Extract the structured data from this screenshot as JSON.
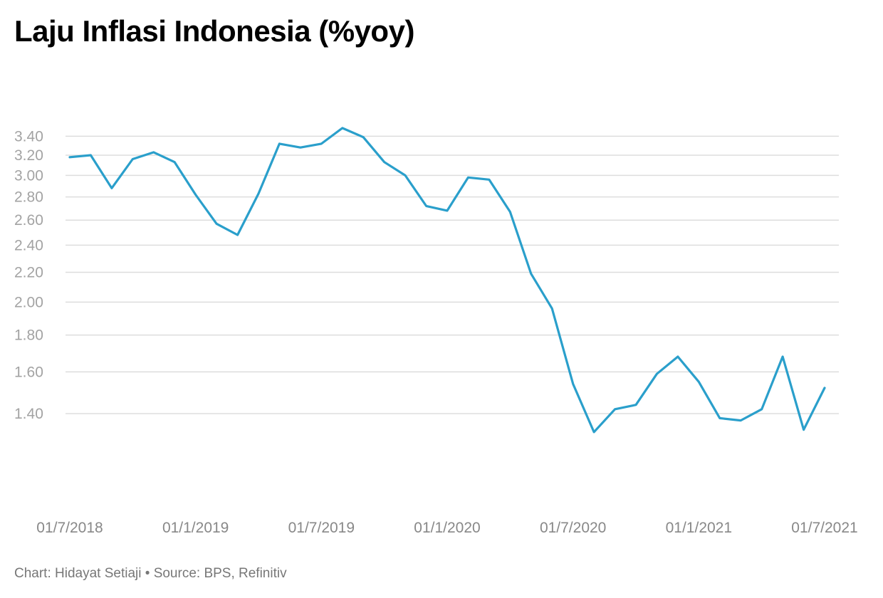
{
  "title": "Laju Inflasi Indonesia (%yoy)",
  "footer": {
    "credit": "Chart: Hidayat Setiaji",
    "separator": " • ",
    "source": "Source: BPS, Refinitiv"
  },
  "colors": {
    "line": "#2a9fcb",
    "grid": "#dddddd",
    "tick_text": "#a3a3a3",
    "title_text": "#000000"
  },
  "chart_data": {
    "type": "line",
    "title": "Laju Inflasi Indonesia (%yoy)",
    "xlabel": "",
    "ylabel": "",
    "y_scale": "log",
    "ylim": [
      1.32,
      3.42
    ],
    "grid": true,
    "y_ticks": [
      "3.40",
      "3.20",
      "3.00",
      "2.80",
      "2.60",
      "2.40",
      "2.20",
      "2.00",
      "1.80",
      "1.60",
      "1.40"
    ],
    "x_ticks": [
      "01/7/2018",
      "01/1/2019",
      "01/7/2019",
      "01/1/2020",
      "01/7/2020",
      "01/1/2021",
      "01/7/2021"
    ],
    "series": [
      {
        "x": [
          "2018-07",
          "2018-08",
          "2018-09",
          "2018-10",
          "2018-11",
          "2018-12",
          "2019-01",
          "2019-02",
          "2019-03",
          "2019-04",
          "2019-05",
          "2019-06",
          "2019-07",
          "2019-08",
          "2019-09",
          "2019-10",
          "2019-11",
          "2019-12",
          "2020-01",
          "2020-02",
          "2020-03",
          "2020-04",
          "2020-05",
          "2020-06",
          "2020-07",
          "2020-08",
          "2020-09",
          "2020-10",
          "2020-11",
          "2020-12",
          "2021-01",
          "2021-02",
          "2021-03",
          "2021-04",
          "2021-05",
          "2021-06",
          "2021-07"
        ],
        "values": [
          3.18,
          3.2,
          2.88,
          3.16,
          3.23,
          3.13,
          2.82,
          2.57,
          2.48,
          2.83,
          3.32,
          3.28,
          3.32,
          3.49,
          3.39,
          3.13,
          3.0,
          2.72,
          2.68,
          2.98,
          2.96,
          2.67,
          2.19,
          1.96,
          1.54,
          1.32,
          1.42,
          1.44,
          1.59,
          1.68,
          1.55,
          1.38,
          1.37,
          1.42,
          1.68,
          1.33,
          1.52
        ]
      }
    ]
  }
}
